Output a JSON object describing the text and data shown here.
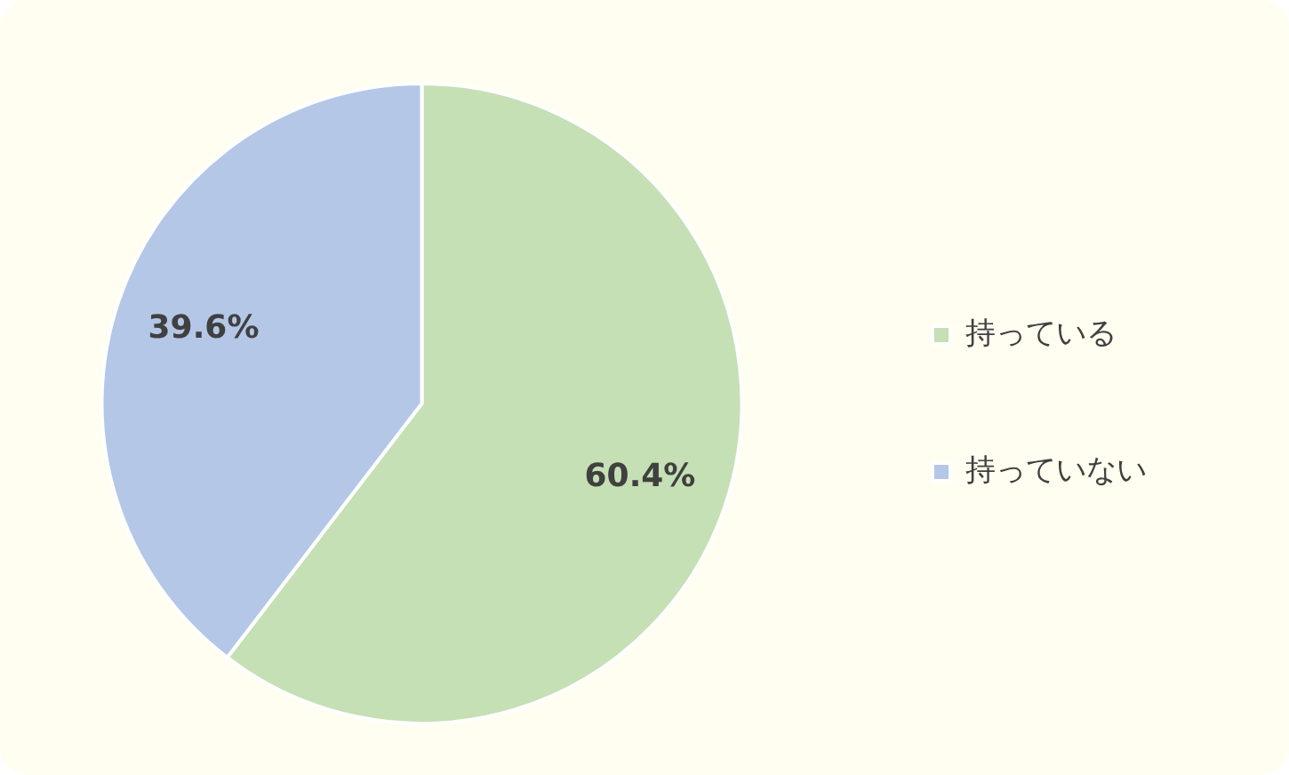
{
  "chart_data": {
    "type": "pie",
    "categories": [
      "持っている",
      "持っていない"
    ],
    "values": [
      60.4,
      39.6
    ],
    "colors": [
      "#c5e0b4",
      "#b4c7e7"
    ],
    "value_labels": [
      "60.4%",
      "39.6%"
    ],
    "legend": "right"
  }
}
